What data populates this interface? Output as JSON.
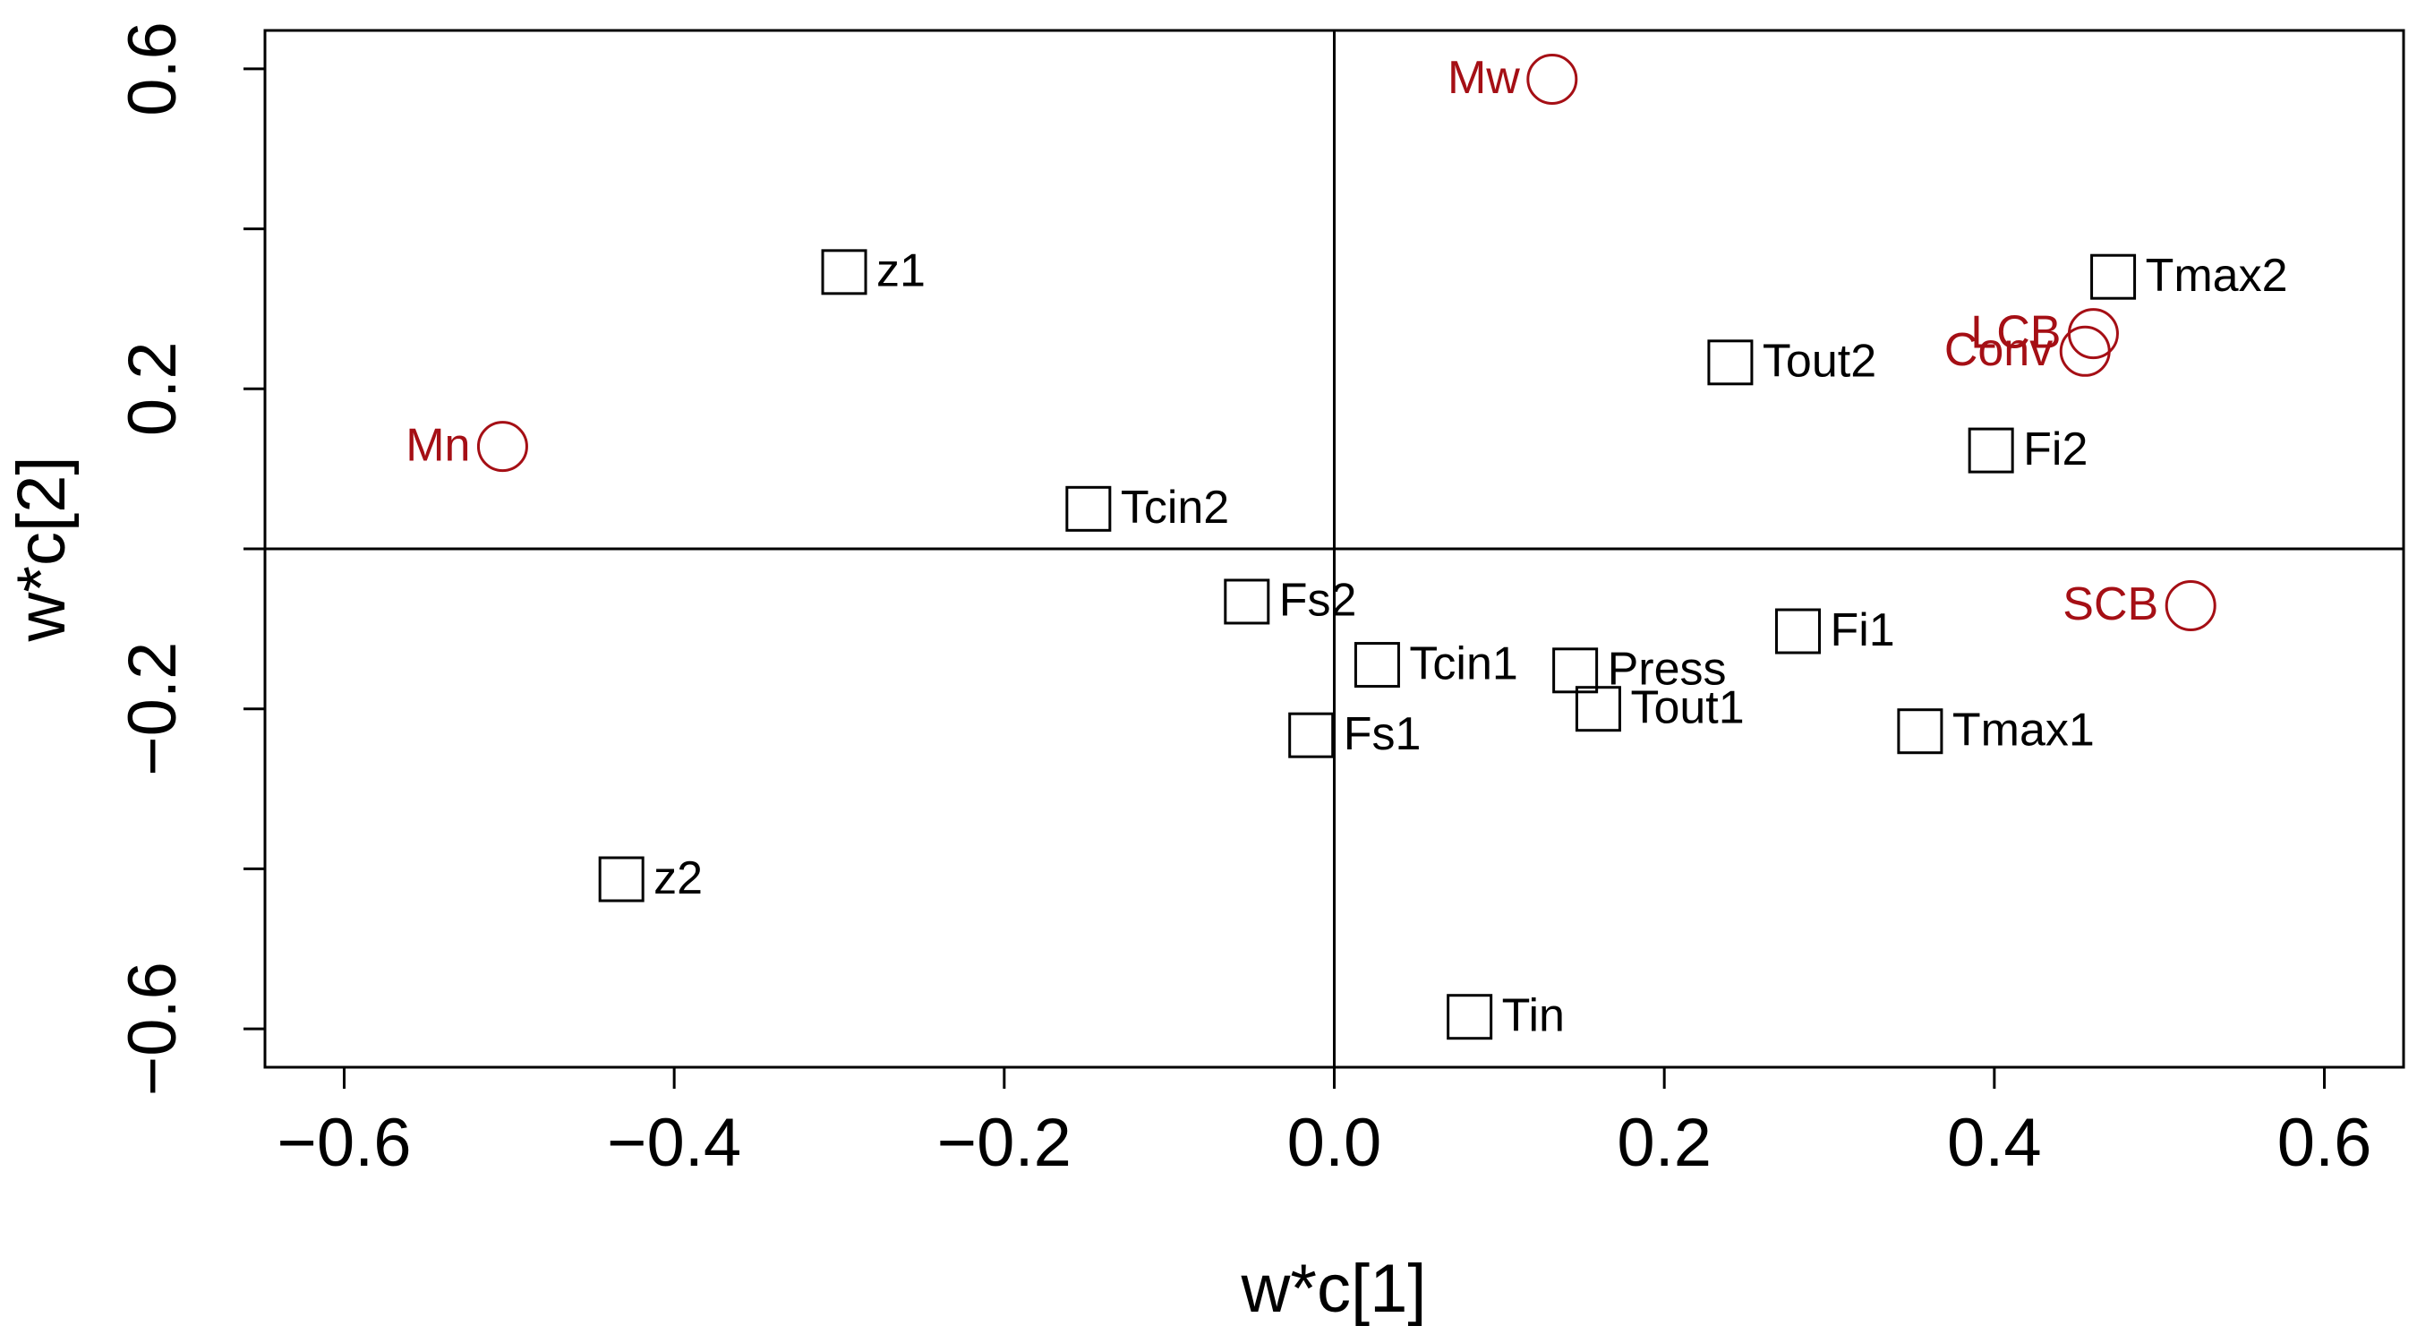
{
  "chart_data": {
    "type": "scatter",
    "title": "",
    "xlabel": "w*c[1]",
    "ylabel": "w*c[2]",
    "xlim": [
      -0.648,
      0.648
    ],
    "ylim": [
      -0.648,
      0.648
    ],
    "xticks": [
      "−0.6",
      "−0.4",
      "−0.2",
      "0.0",
      "0.2",
      "0.4",
      "0.6"
    ],
    "yticks": [
      "0.6",
      "0.2",
      "−0.2",
      "−0.6"
    ],
    "grid": false,
    "reference_lines": {
      "x": 0,
      "y": 0
    },
    "colors": {
      "predictor": "#000000",
      "response": "#a50f15"
    },
    "series": [
      {
        "marker": "square",
        "color": "#000000",
        "points": [
          {
            "label": "z1",
            "x": -0.297,
            "y": 0.346
          },
          {
            "label": "z2",
            "x": -0.432,
            "y": -0.413
          },
          {
            "label": "Tcin2",
            "x": -0.149,
            "y": 0.05
          },
          {
            "label": "Fs2",
            "x": -0.053,
            "y": -0.066
          },
          {
            "label": "Tcin1",
            "x": 0.026,
            "y": -0.145
          },
          {
            "label": "Fs1",
            "x": -0.014,
            "y": -0.233
          },
          {
            "label": "Press",
            "x": 0.146,
            "y": -0.152
          },
          {
            "label": "Tout1",
            "x": 0.16,
            "y": -0.2
          },
          {
            "label": "Tin",
            "x": 0.082,
            "y": -0.585
          },
          {
            "label": "Fi1",
            "x": 0.281,
            "y": -0.103
          },
          {
            "label": "Tmax1",
            "x": 0.355,
            "y": -0.228
          },
          {
            "label": "Fi2",
            "x": 0.398,
            "y": 0.123
          },
          {
            "label": "Tout2",
            "x": 0.24,
            "y": 0.233
          },
          {
            "label": "Tmax2",
            "x": 0.472,
            "y": 0.34
          }
        ]
      },
      {
        "marker": "circle",
        "color": "#a50f15",
        "points": [
          {
            "label": "Mn",
            "x": -0.504,
            "y": 0.128
          },
          {
            "label": "Mw",
            "x": 0.132,
            "y": 0.587
          },
          {
            "label": "LCB",
            "x": 0.46,
            "y": 0.269
          },
          {
            "label": "Conv",
            "x": 0.455,
            "y": 0.247
          },
          {
            "label": "SCB",
            "x": 0.519,
            "y": -0.071
          }
        ]
      }
    ]
  }
}
